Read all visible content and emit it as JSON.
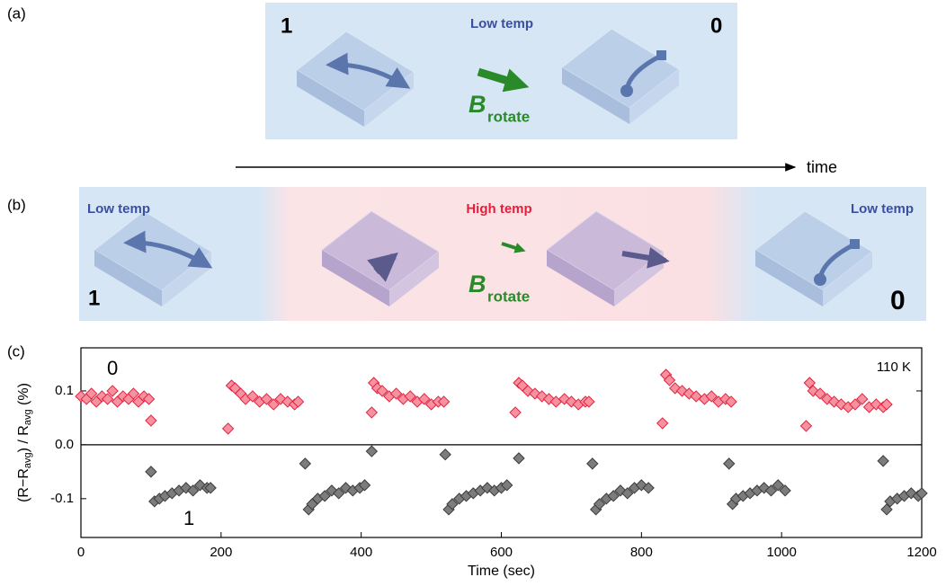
{
  "panel_labels": [
    "(a)",
    "(b)",
    "(c)"
  ],
  "panel_a": {
    "state_left": "1",
    "label": "Low temp",
    "state_right": "0",
    "field": {
      "symbol": "B",
      "subscript": "rotate"
    }
  },
  "time_axis": "time",
  "panel_b": {
    "label_left": "Low temp",
    "state_left": "1",
    "label_middle": "High temp",
    "field": {
      "symbol": "B",
      "subscript": "rotate"
    },
    "label_right": "Low temp",
    "state_right": "0"
  },
  "chart_data": {
    "type": "scatter",
    "xlabel": "Time (sec)",
    "ylabel": [
      "(R−R",
      "avg",
      ") / R",
      "avg",
      " (%)"
    ],
    "annotations": [
      "0",
      "1",
      "110 K"
    ],
    "xlim": [
      0,
      1200
    ],
    "xticks": [
      0,
      200,
      400,
      600,
      800,
      1000,
      1200
    ],
    "ylim": [
      -0.172,
      0.18
    ],
    "yticks": [
      -0.1,
      {
        "value": 0,
        "label": "0.0"
      },
      0.1
    ],
    "zero_line": true,
    "series": [
      {
        "color": "#f7909f",
        "edgecolor": "#e3203c",
        "x": [
          0,
          8,
          15,
          22,
          30,
          38,
          45,
          52,
          60,
          68,
          75,
          82,
          90,
          97,
          100,
          210,
          215,
          220,
          228,
          235,
          245,
          255,
          265,
          275,
          285,
          295,
          305,
          310,
          415,
          418,
          423,
          430,
          440,
          450,
          460,
          470,
          480,
          490,
          500,
          510,
          518,
          620,
          625,
          630,
          638,
          648,
          658,
          668,
          678,
          690,
          700,
          710,
          720,
          725,
          830,
          835,
          840,
          848,
          858,
          868,
          878,
          890,
          900,
          910,
          920,
          928,
          1035,
          1040,
          1045,
          1055,
          1065,
          1075,
          1085,
          1095,
          1105,
          1115,
          1125,
          1135,
          1145,
          1150
        ],
        "values": [
          0.09,
          0.085,
          0.095,
          0.08,
          0.09,
          0.085,
          0.1,
          0.08,
          0.09,
          0.085,
          0.095,
          0.08,
          0.09,
          0.085,
          0.045,
          0.03,
          0.11,
          0.105,
          0.095,
          0.085,
          0.09,
          0.08,
          0.085,
          0.075,
          0.085,
          0.08,
          0.075,
          0.08,
          0.06,
          0.115,
          0.105,
          0.1,
          0.09,
          0.095,
          0.085,
          0.09,
          0.08,
          0.085,
          0.075,
          0.08,
          0.08,
          0.06,
          0.115,
          0.11,
          0.1,
          0.095,
          0.09,
          0.085,
          0.08,
          0.085,
          0.08,
          0.075,
          0.08,
          0.08,
          0.04,
          0.13,
          0.12,
          0.105,
          0.1,
          0.095,
          0.09,
          0.085,
          0.09,
          0.08,
          0.085,
          0.08,
          0.035,
          0.115,
          0.1,
          0.095,
          0.085,
          0.08,
          0.075,
          0.07,
          0.075,
          0.085,
          0.07,
          0.075,
          0.07,
          0.075
        ]
      },
      {
        "color": "#7c7c7c",
        "edgecolor": "#3c3c3c",
        "x": [
          100,
          105,
          112,
          120,
          130,
          140,
          150,
          160,
          170,
          180,
          185,
          320,
          325,
          330,
          338,
          348,
          358,
          368,
          378,
          388,
          398,
          405,
          415,
          520,
          525,
          530,
          540,
          550,
          560,
          570,
          580,
          590,
          600,
          608,
          625,
          730,
          735,
          740,
          750,
          760,
          770,
          780,
          790,
          800,
          810,
          925,
          930,
          935,
          945,
          955,
          965,
          975,
          985,
          995,
          1005,
          1145,
          1150,
          1155,
          1165,
          1175,
          1185,
          1195,
          1200
        ],
        "values": [
          -0.05,
          -0.105,
          -0.1,
          -0.095,
          -0.09,
          -0.085,
          -0.08,
          -0.085,
          -0.075,
          -0.08,
          -0.08,
          -0.035,
          -0.12,
          -0.11,
          -0.1,
          -0.095,
          -0.085,
          -0.09,
          -0.08,
          -0.085,
          -0.08,
          -0.075,
          -0.012,
          -0.018,
          -0.12,
          -0.11,
          -0.1,
          -0.095,
          -0.09,
          -0.085,
          -0.08,
          -0.085,
          -0.08,
          -0.075,
          -0.025,
          -0.035,
          -0.12,
          -0.11,
          -0.1,
          -0.095,
          -0.085,
          -0.09,
          -0.08,
          -0.075,
          -0.08,
          -0.035,
          -0.11,
          -0.1,
          -0.095,
          -0.09,
          -0.085,
          -0.08,
          -0.085,
          -0.075,
          -0.085,
          -0.03,
          -0.12,
          -0.105,
          -0.1,
          -0.095,
          -0.09,
          -0.095,
          -0.09
        ]
      }
    ]
  }
}
